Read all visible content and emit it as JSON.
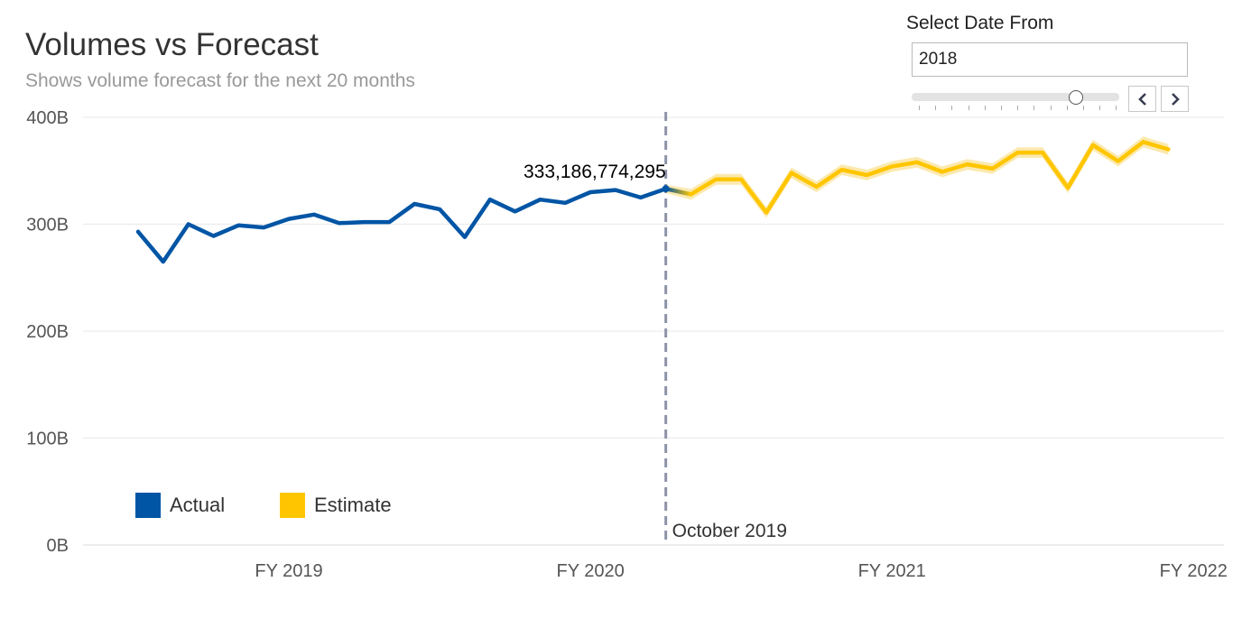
{
  "header": {
    "title": "Volumes vs Forecast",
    "subtitle": "Shows volume forecast for the next 20 months"
  },
  "filter": {
    "label": "Select Date From",
    "value": "2018",
    "slider_position": 0.79,
    "prev_icon": "chevron-left-icon",
    "next_icon": "chevron-right-icon"
  },
  "chart_data": {
    "type": "line",
    "title": "Volumes vs Forecast",
    "subtitle": "Shows volume forecast for the next 20 months",
    "ylim": [
      0,
      400
    ],
    "y_unit": "B",
    "y_ticks": [
      "0B",
      "100B",
      "200B",
      "300B",
      "400B"
    ],
    "x_ticks": [
      "FY 2019",
      "FY 2020",
      "FY 2021",
      "FY 2022"
    ],
    "grid": true,
    "legend_position": "bottom-left",
    "colors": {
      "actual": "#0055A5",
      "estimate": "#FFC600",
      "band": "#FBE7A6",
      "reference": "#8E93A8"
    },
    "series": [
      {
        "name": "Actual",
        "values": [
          293,
          265,
          300,
          289,
          299,
          297,
          305,
          309,
          301,
          302,
          302,
          319,
          314,
          288,
          323,
          312,
          323,
          320,
          330,
          332,
          325,
          333.19
        ]
      },
      {
        "name": "Estimate",
        "values": [
          333.19,
          328,
          342,
          342,
          311,
          348,
          335,
          351,
          346,
          354,
          358,
          349,
          356,
          352,
          367,
          367,
          334,
          374,
          359,
          377,
          370
        ],
        "upper": [
          337,
          333,
          347,
          347,
          316,
          353,
          340,
          356,
          351,
          359,
          363,
          354,
          361,
          357,
          372,
          372,
          339,
          379,
          364,
          382,
          375
        ],
        "lower": [
          329,
          323,
          337,
          337,
          306,
          343,
          330,
          346,
          341,
          349,
          353,
          344,
          351,
          347,
          362,
          362,
          329,
          369,
          354,
          372,
          365
        ]
      }
    ],
    "annotation": {
      "label": "333,186,774,295"
    },
    "reference_line": {
      "label": "October 2019"
    }
  }
}
